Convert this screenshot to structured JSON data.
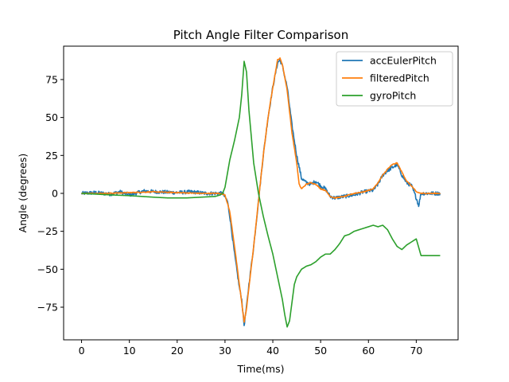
{
  "chart_data": {
    "type": "line",
    "title": "Pitch Angle Filter Comparison",
    "xlabel": "Time(ms)",
    "ylabel": "Angle (degrees)",
    "xlim": [
      -3.75,
      78.75
    ],
    "ylim": [
      -96.5,
      97
    ],
    "xticks": [
      0,
      10,
      20,
      30,
      40,
      50,
      60,
      70
    ],
    "yticks": [
      -75,
      -50,
      -25,
      0,
      25,
      50,
      75
    ],
    "legend_position": "top-right",
    "grid": false,
    "series": [
      {
        "name": "accEulerPitch",
        "color": "#1f77b4",
        "noise": 1.2,
        "points": [
          [
            0,
            0
          ],
          [
            3,
            0.5
          ],
          [
            6,
            -0.5
          ],
          [
            8,
            1
          ],
          [
            10,
            -1
          ],
          [
            13,
            1.5
          ],
          [
            16,
            1
          ],
          [
            20,
            0.5
          ],
          [
            23,
            1
          ],
          [
            26,
            0
          ],
          [
            29.5,
            0
          ],
          [
            30.5,
            -5
          ],
          [
            31,
            -15
          ],
          [
            32,
            -40
          ],
          [
            33,
            -62
          ],
          [
            33.5,
            -70
          ],
          [
            34,
            -87
          ],
          [
            34.5,
            -75
          ],
          [
            35,
            -60
          ],
          [
            36,
            -35
          ],
          [
            37,
            -5
          ],
          [
            38,
            25
          ],
          [
            39,
            50
          ],
          [
            40,
            70
          ],
          [
            41,
            86
          ],
          [
            41.5,
            88
          ],
          [
            42,
            84
          ],
          [
            43,
            70
          ],
          [
            44,
            45
          ],
          [
            45,
            25
          ],
          [
            46,
            10
          ],
          [
            47,
            7
          ],
          [
            48,
            6
          ],
          [
            49,
            8
          ],
          [
            50,
            5
          ],
          [
            51,
            3
          ],
          [
            52,
            -2
          ],
          [
            53,
            -3
          ],
          [
            55,
            -2
          ],
          [
            57,
            -1
          ],
          [
            59,
            1
          ],
          [
            61,
            2
          ],
          [
            62,
            6
          ],
          [
            63,
            12
          ],
          [
            64,
            15
          ],
          [
            65,
            17
          ],
          [
            66,
            19
          ],
          [
            67,
            12
          ],
          [
            68,
            7
          ],
          [
            69,
            5
          ],
          [
            70,
            -3
          ],
          [
            70.5,
            -8
          ],
          [
            71,
            0
          ],
          [
            75,
            0
          ]
        ]
      },
      {
        "name": "filteredPitch",
        "color": "#ff7f0e",
        "noise": 0.3,
        "points": [
          [
            0,
            0
          ],
          [
            5,
            0
          ],
          [
            10,
            0.5
          ],
          [
            15,
            1
          ],
          [
            20,
            0.5
          ],
          [
            25,
            0
          ],
          [
            29,
            0
          ],
          [
            30,
            -1
          ],
          [
            31,
            -12
          ],
          [
            32,
            -35
          ],
          [
            33,
            -60
          ],
          [
            33.5,
            -72
          ],
          [
            34,
            -85
          ],
          [
            34.5,
            -76
          ],
          [
            35,
            -62
          ],
          [
            36,
            -35
          ],
          [
            37,
            -5
          ],
          [
            38,
            25
          ],
          [
            39,
            50
          ],
          [
            40,
            70
          ],
          [
            41,
            88
          ],
          [
            41.5,
            89
          ],
          [
            42,
            85
          ],
          [
            43,
            68
          ],
          [
            44,
            40
          ],
          [
            45,
            20
          ],
          [
            45.5,
            6
          ],
          [
            46,
            3
          ],
          [
            47,
            6
          ],
          [
            48,
            7
          ],
          [
            49,
            6
          ],
          [
            50,
            3
          ],
          [
            51,
            2
          ],
          [
            52,
            -2
          ],
          [
            53,
            -3
          ],
          [
            55,
            -2
          ],
          [
            57,
            0
          ],
          [
            59,
            1
          ],
          [
            61,
            3
          ],
          [
            62,
            7
          ],
          [
            63,
            12
          ],
          [
            64,
            16
          ],
          [
            65,
            19
          ],
          [
            66,
            20
          ],
          [
            67,
            14
          ],
          [
            68,
            8
          ],
          [
            69,
            5
          ],
          [
            70,
            1
          ],
          [
            71,
            0
          ],
          [
            75,
            0
          ]
        ]
      },
      {
        "name": "gyroPitch",
        "color": "#2ca02c",
        "noise": 0,
        "points": [
          [
            0,
            0
          ],
          [
            3,
            -0.5
          ],
          [
            6,
            -1
          ],
          [
            10,
            -1.5
          ],
          [
            15,
            -2.5
          ],
          [
            18,
            -3
          ],
          [
            22,
            -3
          ],
          [
            25,
            -2.5
          ],
          [
            28,
            -2
          ],
          [
            29,
            -1
          ],
          [
            29.5,
            0
          ],
          [
            30,
            4
          ],
          [
            31,
            22
          ],
          [
            32,
            35
          ],
          [
            33,
            50
          ],
          [
            33.5,
            65
          ],
          [
            34,
            87
          ],
          [
            34.5,
            80
          ],
          [
            35,
            55
          ],
          [
            36,
            20
          ],
          [
            37,
            0
          ],
          [
            38,
            -15
          ],
          [
            39,
            -28
          ],
          [
            40,
            -40
          ],
          [
            41,
            -55
          ],
          [
            42,
            -70
          ],
          [
            42.5,
            -80
          ],
          [
            43,
            -88
          ],
          [
            43.5,
            -84
          ],
          [
            44,
            -72
          ],
          [
            44.5,
            -60
          ],
          [
            45,
            -55
          ],
          [
            46,
            -50
          ],
          [
            47,
            -48
          ],
          [
            48,
            -47
          ],
          [
            49,
            -45
          ],
          [
            50,
            -42
          ],
          [
            51,
            -40
          ],
          [
            52,
            -40
          ],
          [
            53,
            -37
          ],
          [
            54,
            -33
          ],
          [
            55,
            -28
          ],
          [
            56,
            -27
          ],
          [
            57,
            -25
          ],
          [
            58,
            -24
          ],
          [
            59,
            -23
          ],
          [
            60,
            -22
          ],
          [
            61,
            -21
          ],
          [
            62,
            -22
          ],
          [
            63,
            -21
          ],
          [
            64,
            -24
          ],
          [
            65,
            -30
          ],
          [
            66,
            -35
          ],
          [
            67,
            -37
          ],
          [
            68,
            -34
          ],
          [
            69,
            -32
          ],
          [
            70,
            -30
          ],
          [
            71,
            -41
          ],
          [
            72,
            -41
          ],
          [
            75,
            -41
          ]
        ]
      }
    ]
  }
}
